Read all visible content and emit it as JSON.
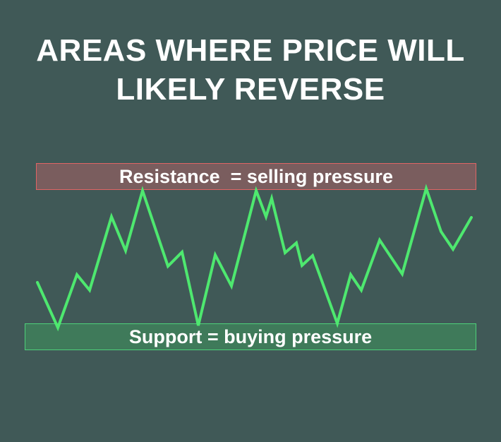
{
  "title": {
    "line1": "AREAS WHERE PRICE WILL",
    "line2": "LIKELY REVERSE"
  },
  "zones": {
    "resistance_label": "Resistance  = selling pressure",
    "support_label": "Support = buying pressure"
  },
  "colors": {
    "background": "#405957",
    "price_line": "#4ee86f",
    "resistance_fill": "#7a5d5e",
    "resistance_border": "#e06565",
    "support_fill": "#3f7a5a",
    "support_border": "#4ed17a"
  }
}
